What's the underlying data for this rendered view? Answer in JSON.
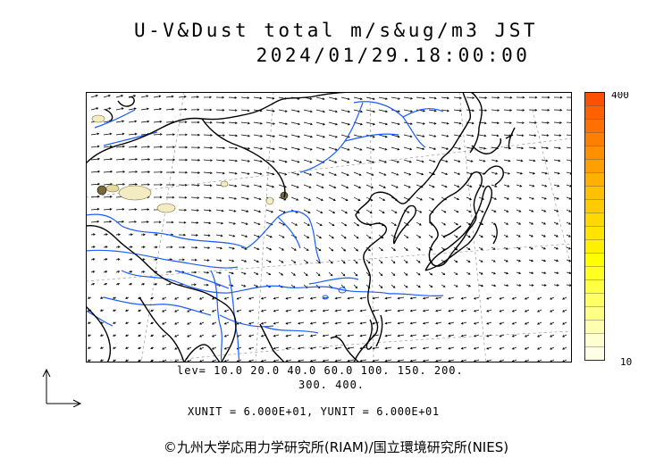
{
  "title": {
    "line1": "U-V&Dust total m/s&ug/m3 JST",
    "line2": "2024/01/29.18:00:00"
  },
  "colorbar": {
    "max_label": "400",
    "min_label": "10",
    "colors": [
      "#ffffe6",
      "#ffffd0",
      "#ffffb0",
      "#ffff88",
      "#ffff66",
      "#ffff44",
      "#ffff22",
      "#ffff00",
      "#fff000",
      "#ffe400",
      "#ffd800",
      "#ffcc00",
      "#ffc000",
      "#ffb000",
      "#ffa000",
      "#ff9000",
      "#ff8000",
      "#ff7000",
      "#ff6000",
      "#ff5000"
    ]
  },
  "contour_levels": {
    "line1": "lev= 10.0 20.0 40.0 60.0 100. 150. 200.",
    "line2": "300. 400."
  },
  "units": {
    "text": "XUNIT = 6.000E+01, YUNIT = 6.000E+01"
  },
  "credit": {
    "text": "©九州大学応用力学研究所(RIAM)/国立環境研究所(NIES)"
  },
  "map_style": {
    "coast_color": "#000000",
    "river_color": "#1a5cff",
    "dust_fill": "#f3ecc2",
    "dust_dark": "#7a6a3a",
    "grid_color": "#999999"
  }
}
